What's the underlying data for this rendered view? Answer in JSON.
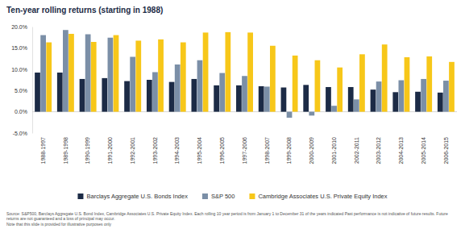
{
  "chart_data": {
    "type": "bar",
    "title": "Ten-year rolling returns (starting in 1988)",
    "categories": [
      "1988-1997",
      "1989-1998",
      "1990-1999",
      "1991-2000",
      "1992-2001",
      "1993-2002",
      "1994-2003",
      "1995-2004",
      "1996-2005",
      "1997-2006",
      "1998-2007",
      "1999-2008",
      "2000-2009",
      "2001-2010",
      "2002-2011",
      "2003-2012",
      "2004-2013",
      "2005-2014",
      "2006-2015"
    ],
    "series": [
      {
        "name": "Barclays Aggregate U.S. Bonds Index",
        "color": "#1c2b46",
        "values": [
          9.2,
          9.2,
          7.7,
          7.9,
          7.2,
          7.5,
          7.0,
          7.7,
          6.2,
          6.2,
          6.0,
          5.7,
          6.3,
          5.8,
          5.8,
          5.2,
          4.6,
          4.7,
          4.5
        ]
      },
      {
        "name": "S&P 500",
        "color": "#7b8fa7",
        "values": [
          18.0,
          19.2,
          18.2,
          17.4,
          12.9,
          9.3,
          11.1,
          12.1,
          9.1,
          8.4,
          5.9,
          -1.4,
          -0.9,
          1.4,
          2.9,
          7.1,
          7.4,
          7.7,
          7.3
        ]
      },
      {
        "name": "Cambridge Associates U.S. Private Equity Index",
        "color": "#f7c719",
        "values": [
          16.3,
          18.3,
          16.4,
          18.0,
          16.7,
          17.0,
          16.3,
          18.6,
          18.7,
          18.6,
          15.5,
          13.2,
          12.1,
          10.4,
          13.5,
          15.8,
          12.8,
          13.0,
          11.7
        ]
      }
    ],
    "ylim": [
      -5,
      20
    ],
    "yticks": [
      {
        "value": -5,
        "label": "-5.0%"
      },
      {
        "value": 0,
        "label": "0.0%"
      },
      {
        "value": 5,
        "label": "5.0%"
      },
      {
        "value": 10,
        "label": "10.0%"
      },
      {
        "value": 15,
        "label": "15.0%"
      },
      {
        "value": 20,
        "label": "20.0%"
      }
    ],
    "grid": false,
    "legend": "bottom",
    "source": "Source: S&P500, Barclays Aggregate U.S. Bond Index, Cambridge Associates U.S. Private Equity Index. Each rolling 10 year period is from January 1 to December 31 of the years indicated Past performance is not indicative of future results. Future returns are not guaranteed and a loss of principal may occur.",
    "note": "Note that this slide is provided for illustrative purposes only"
  }
}
